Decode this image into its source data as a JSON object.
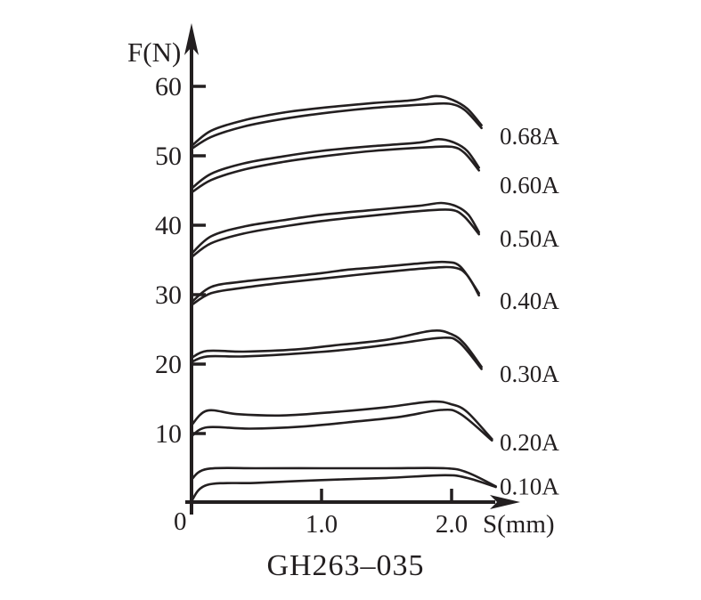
{
  "chart_data": {
    "type": "line",
    "title": "GH263–035",
    "xlabel": "S(mm)",
    "ylabel": "F(N)",
    "origin_label": "0",
    "xlim": [
      0,
      2.5
    ],
    "ylim": [
      0,
      65
    ],
    "grid": false,
    "legend_position": "right-of-curve-tails",
    "line_color": "#231f20",
    "text_color": "#231f20",
    "x_ticks": [
      {
        "value": 1.0,
        "label": "1.0"
      },
      {
        "value": 2.0,
        "label": "2.0"
      }
    ],
    "y_ticks": [
      {
        "value": 10,
        "label": "10"
      },
      {
        "value": 20,
        "label": "20"
      },
      {
        "value": 30,
        "label": "30"
      },
      {
        "value": 40,
        "label": "40"
      },
      {
        "value": 50,
        "label": "50"
      },
      {
        "value": 60,
        "label": "60"
      }
    ],
    "series": [
      {
        "name": "0.68A",
        "label_F": 52.8,
        "upper": [
          [
            0,
            51.4
          ],
          [
            0.15,
            53.6
          ],
          [
            0.4,
            55.1
          ],
          [
            0.7,
            56.2
          ],
          [
            1.0,
            56.9
          ],
          [
            1.4,
            57.6
          ],
          [
            1.7,
            58.0
          ],
          [
            1.88,
            58.6
          ],
          [
            2.0,
            58.1
          ],
          [
            2.12,
            56.8
          ],
          [
            2.23,
            54.4
          ]
        ],
        "lower": [
          [
            0,
            51.0
          ],
          [
            0.15,
            52.7
          ],
          [
            0.4,
            54.2
          ],
          [
            0.7,
            55.3
          ],
          [
            1.0,
            56.1
          ],
          [
            1.4,
            56.9
          ],
          [
            1.8,
            57.4
          ],
          [
            1.98,
            57.5
          ],
          [
            2.1,
            56.6
          ],
          [
            2.23,
            54.0
          ]
        ]
      },
      {
        "name": "0.60A",
        "label_F": 45.8,
        "upper": [
          [
            0,
            45.3
          ],
          [
            0.15,
            47.4
          ],
          [
            0.4,
            48.9
          ],
          [
            0.7,
            49.9
          ],
          [
            1.0,
            50.7
          ],
          [
            1.4,
            51.4
          ],
          [
            1.75,
            51.9
          ],
          [
            1.9,
            52.4
          ],
          [
            2.02,
            51.9
          ],
          [
            2.12,
            50.7
          ],
          [
            2.21,
            48.3
          ]
        ],
        "lower": [
          [
            0,
            44.7
          ],
          [
            0.15,
            46.5
          ],
          [
            0.4,
            48.0
          ],
          [
            0.7,
            49.1
          ],
          [
            1.0,
            49.9
          ],
          [
            1.4,
            50.7
          ],
          [
            1.8,
            51.2
          ],
          [
            2.0,
            51.3
          ],
          [
            2.1,
            50.4
          ],
          [
            2.21,
            47.9
          ]
        ]
      },
      {
        "name": "0.50A",
        "label_F": 38.1,
        "upper": [
          [
            0,
            35.9
          ],
          [
            0.15,
            38.4
          ],
          [
            0.4,
            39.8
          ],
          [
            0.7,
            40.7
          ],
          [
            1.0,
            41.5
          ],
          [
            1.4,
            42.2
          ],
          [
            1.75,
            42.8
          ],
          [
            1.92,
            43.2
          ],
          [
            2.04,
            42.7
          ],
          [
            2.13,
            41.5
          ],
          [
            2.21,
            39.0
          ]
        ],
        "lower": [
          [
            0,
            35.4
          ],
          [
            0.15,
            37.4
          ],
          [
            0.4,
            38.8
          ],
          [
            0.7,
            39.8
          ],
          [
            1.0,
            40.6
          ],
          [
            1.4,
            41.4
          ],
          [
            1.8,
            42.1
          ],
          [
            2.0,
            42.2
          ],
          [
            2.1,
            41.2
          ],
          [
            2.21,
            38.7
          ]
        ]
      },
      {
        "name": "0.40A",
        "label_F": 29.1,
        "upper": [
          [
            0,
            28.9
          ],
          [
            0.15,
            31.1
          ],
          [
            0.4,
            31.9
          ],
          [
            0.7,
            32.5
          ],
          [
            1.0,
            33.1
          ],
          [
            1.2,
            33.6
          ],
          [
            1.4,
            33.9
          ],
          [
            1.75,
            34.5
          ],
          [
            1.95,
            34.7
          ],
          [
            2.07,
            34.0
          ],
          [
            2.21,
            30.2
          ]
        ],
        "lower": [
          [
            0,
            28.5
          ],
          [
            0.15,
            30.2
          ],
          [
            0.4,
            31.0
          ],
          [
            0.7,
            31.7
          ],
          [
            1.0,
            32.3
          ],
          [
            1.4,
            33.1
          ],
          [
            1.8,
            33.8
          ],
          [
            2.02,
            33.9
          ],
          [
            2.12,
            32.8
          ],
          [
            2.21,
            29.9
          ]
        ]
      },
      {
        "name": "0.30A",
        "label_F": 18.6,
        "upper": [
          [
            0,
            20.9
          ],
          [
            0.12,
            21.9
          ],
          [
            0.4,
            21.8
          ],
          [
            0.8,
            22.1
          ],
          [
            1.1,
            22.7
          ],
          [
            1.5,
            23.5
          ],
          [
            1.85,
            24.8
          ],
          [
            2.0,
            24.3
          ],
          [
            2.1,
            22.9
          ],
          [
            2.23,
            19.6
          ]
        ],
        "lower": [
          [
            0,
            20.3
          ],
          [
            0.12,
            21.1
          ],
          [
            0.4,
            21.1
          ],
          [
            0.8,
            21.5
          ],
          [
            1.2,
            22.1
          ],
          [
            1.6,
            23.0
          ],
          [
            1.93,
            23.8
          ],
          [
            2.06,
            23.1
          ],
          [
            2.23,
            19.3
          ]
        ]
      },
      {
        "name": "0.20A",
        "label_F": 8.7,
        "upper": [
          [
            0,
            11.2
          ],
          [
            0.12,
            13.3
          ],
          [
            0.35,
            12.8
          ],
          [
            0.7,
            12.6
          ],
          [
            1.1,
            13.1
          ],
          [
            1.5,
            13.8
          ],
          [
            1.85,
            14.6
          ],
          [
            2.0,
            14.2
          ],
          [
            2.12,
            13.1
          ],
          [
            2.31,
            9.2
          ]
        ],
        "lower": [
          [
            0,
            9.6
          ],
          [
            0.12,
            10.9
          ],
          [
            0.45,
            10.7
          ],
          [
            0.85,
            11.0
          ],
          [
            1.25,
            11.7
          ],
          [
            1.6,
            12.4
          ],
          [
            1.92,
            13.4
          ],
          [
            2.07,
            12.8
          ],
          [
            2.31,
            9.0
          ]
        ]
      },
      {
        "name": "0.10A",
        "label_F": 2.4,
        "upper": [
          [
            0,
            3.4
          ],
          [
            0.12,
            4.9
          ],
          [
            0.5,
            5.0
          ],
          [
            1.0,
            5.0
          ],
          [
            1.5,
            5.0
          ],
          [
            1.95,
            5.0
          ],
          [
            2.12,
            4.4
          ],
          [
            2.34,
            2.4
          ]
        ],
        "lower": [
          [
            0,
            0.3
          ],
          [
            0.12,
            2.6
          ],
          [
            0.5,
            2.9
          ],
          [
            1.0,
            3.3
          ],
          [
            1.5,
            3.6
          ],
          [
            1.95,
            4.0
          ],
          [
            2.12,
            3.6
          ],
          [
            2.34,
            2.3
          ]
        ]
      }
    ]
  }
}
